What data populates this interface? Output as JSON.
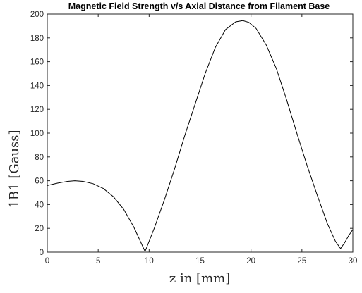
{
  "chart_data": {
    "type": "line",
    "title": "Magnetic Field Strength v/s Axial Distance from Filament Base",
    "xlabel": "z in [mm]",
    "ylabel": "1B1 [Gauss]",
    "xlim": [
      0,
      30
    ],
    "ylim": [
      0,
      200
    ],
    "xticks": [
      0,
      5,
      10,
      15,
      20,
      25,
      30
    ],
    "yticks": [
      0,
      20,
      40,
      60,
      80,
      100,
      120,
      140,
      160,
      180,
      200
    ],
    "xtick_labels": [
      "0",
      "5",
      "10",
      "15",
      "20",
      "25",
      "30"
    ],
    "ytick_labels": [
      "0",
      "20",
      "40",
      "60",
      "80",
      "100",
      "120",
      "140",
      "160",
      "180",
      "200"
    ],
    "grid": false,
    "series": [
      {
        "color": "#000000",
        "x": [
          0,
          1,
          2,
          2.7,
          3.5,
          4.5,
          5.5,
          6.5,
          7.5,
          8.5,
          9.2,
          9.6,
          10.5,
          11.5,
          12.5,
          13.5,
          14.5,
          15.5,
          16.5,
          17.5,
          18.5,
          19.2,
          19.8,
          20.5,
          21.5,
          22.5,
          23.5,
          24.5,
          25.5,
          26.5,
          27.5,
          28.3,
          28.8,
          29.2,
          29.6,
          30
        ],
        "y": [
          56,
          58,
          59.5,
          60,
          59.5,
          57.5,
          53.5,
          46.5,
          36,
          21,
          8,
          0.5,
          20,
          44,
          70,
          98,
          124,
          150,
          172,
          187,
          193.5,
          194.5,
          193,
          188,
          174,
          154,
          128,
          100,
          73,
          48,
          24,
          9,
          3,
          8,
          14,
          19
        ]
      }
    ]
  }
}
